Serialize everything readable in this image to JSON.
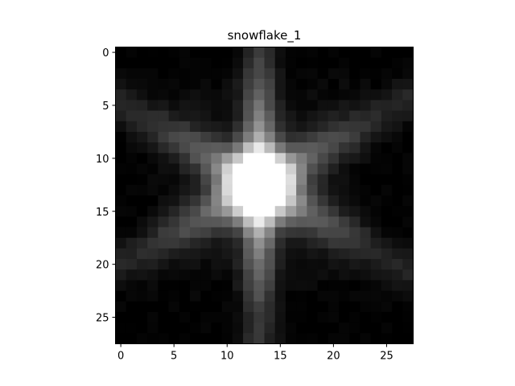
{
  "chart_data": {
    "type": "heatmap",
    "title": "snowflake_1",
    "colormap": "gray",
    "rows": 28,
    "cols": 28,
    "value_range": [
      0,
      1
    ],
    "x_ticks": [
      0,
      5,
      10,
      15,
      20,
      25
    ],
    "y_ticks": [
      0,
      5,
      10,
      15,
      20,
      25
    ],
    "xlim": [
      -0.5,
      27.5
    ],
    "ylim": [
      27.5,
      -0.5
    ],
    "grid": false,
    "image": {
      "center": [
        13,
        12.5
      ],
      "spokes": [
        {
          "angle_deg": 90,
          "intensity": 0.62,
          "width": 1.1
        },
        {
          "angle_deg": 30,
          "intensity": 0.42,
          "width": 1.3
        },
        {
          "angle_deg": -30,
          "intensity": 0.42,
          "width": 1.3
        }
      ],
      "core_intensity": 0.98,
      "core_radius": 2.2,
      "background_intensity": 0.12,
      "background_radius": 11.5
    }
  }
}
